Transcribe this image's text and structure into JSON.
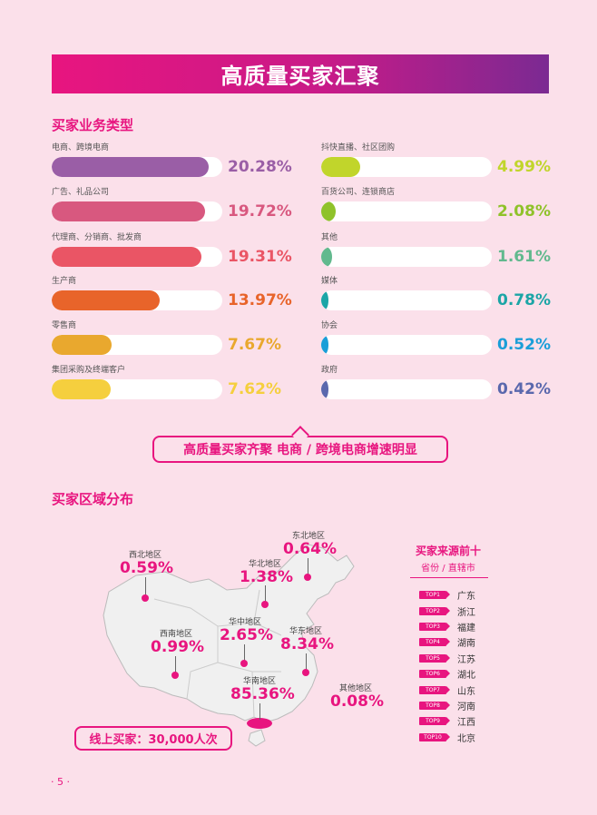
{
  "banner": {
    "title": "高质量买家汇聚"
  },
  "buyer_types": {
    "title": "买家业务类型",
    "left": [
      {
        "label": "电商、跨境电商",
        "value": "20.28%",
        "level": 20.28,
        "color": "#9a5ea6"
      },
      {
        "label": "广告、礼品公司",
        "value": "19.72%",
        "level": 19.72,
        "color": "#d8587f"
      },
      {
        "label": "代理商、分销商、批发商",
        "value": "19.31%",
        "level": 19.31,
        "color": "#ea5565"
      },
      {
        "label": "生产商",
        "value": "13.97%",
        "level": 13.97,
        "color": "#e8642a"
      },
      {
        "label": "零售商",
        "value": "7.67%",
        "level": 7.67,
        "color": "#e9a82e"
      },
      {
        "label": "集团采购及终端客户",
        "value": "7.62%",
        "level": 7.62,
        "color": "#f5cf3e"
      }
    ],
    "right": [
      {
        "label": "抖快直播、社区团购",
        "value": "4.99%",
        "level": 4.99,
        "color": "#c1d52b"
      },
      {
        "label": "百货公司、连锁商店",
        "value": "2.08%",
        "level": 2.08,
        "color": "#8fc22a"
      },
      {
        "label": "其他",
        "value": "1.61%",
        "level": 1.61,
        "color": "#62b98e"
      },
      {
        "label": "媒体",
        "value": "0.78%",
        "level": 0.78,
        "color": "#1ba5a6"
      },
      {
        "label": "协会",
        "value": "0.52%",
        "level": 0.52,
        "color": "#1a9ed8"
      },
      {
        "label": "政府",
        "value": "0.42%",
        "level": 0.42,
        "color": "#5a68ad"
      }
    ]
  },
  "callout": {
    "text": "高质量买家齐聚 电商 / 跨境电商增速明显"
  },
  "region": {
    "title": "买家区域分布",
    "regions": [
      {
        "name": "东北地区",
        "value": "0.64%"
      },
      {
        "name": "西北地区",
        "value": "0.59%"
      },
      {
        "name": "华北地区",
        "value": "1.38%"
      },
      {
        "name": "华中地区",
        "value": "2.65%"
      },
      {
        "name": "西南地区",
        "value": "0.99%"
      },
      {
        "name": "华东地区",
        "value": "8.34%"
      },
      {
        "name": "华南地区",
        "value": "85.36%"
      },
      {
        "name": "其他地区",
        "value": "0.08%"
      }
    ],
    "online": "线上买家：30,000人次"
  },
  "top_sources": {
    "title": "买家来源前十",
    "subtitle": "省份 / 直辖市",
    "items": [
      {
        "rank": "TOP1",
        "name": "广东"
      },
      {
        "rank": "TOP2",
        "name": "浙江"
      },
      {
        "rank": "TOP3",
        "name": "福建"
      },
      {
        "rank": "TOP4",
        "name": "湖南"
      },
      {
        "rank": "TOP5",
        "name": "江苏"
      },
      {
        "rank": "TOP6",
        "name": "湖北"
      },
      {
        "rank": "TOP7",
        "name": "山东"
      },
      {
        "rank": "TOP8",
        "name": "河南"
      },
      {
        "rank": "TOP9",
        "name": "江西"
      },
      {
        "rank": "TOP10",
        "name": "北京"
      }
    ]
  },
  "page": {
    "number": "· 5 ·"
  },
  "colors": {
    "accent": "#e8157f",
    "background": "#fbe0ea"
  }
}
